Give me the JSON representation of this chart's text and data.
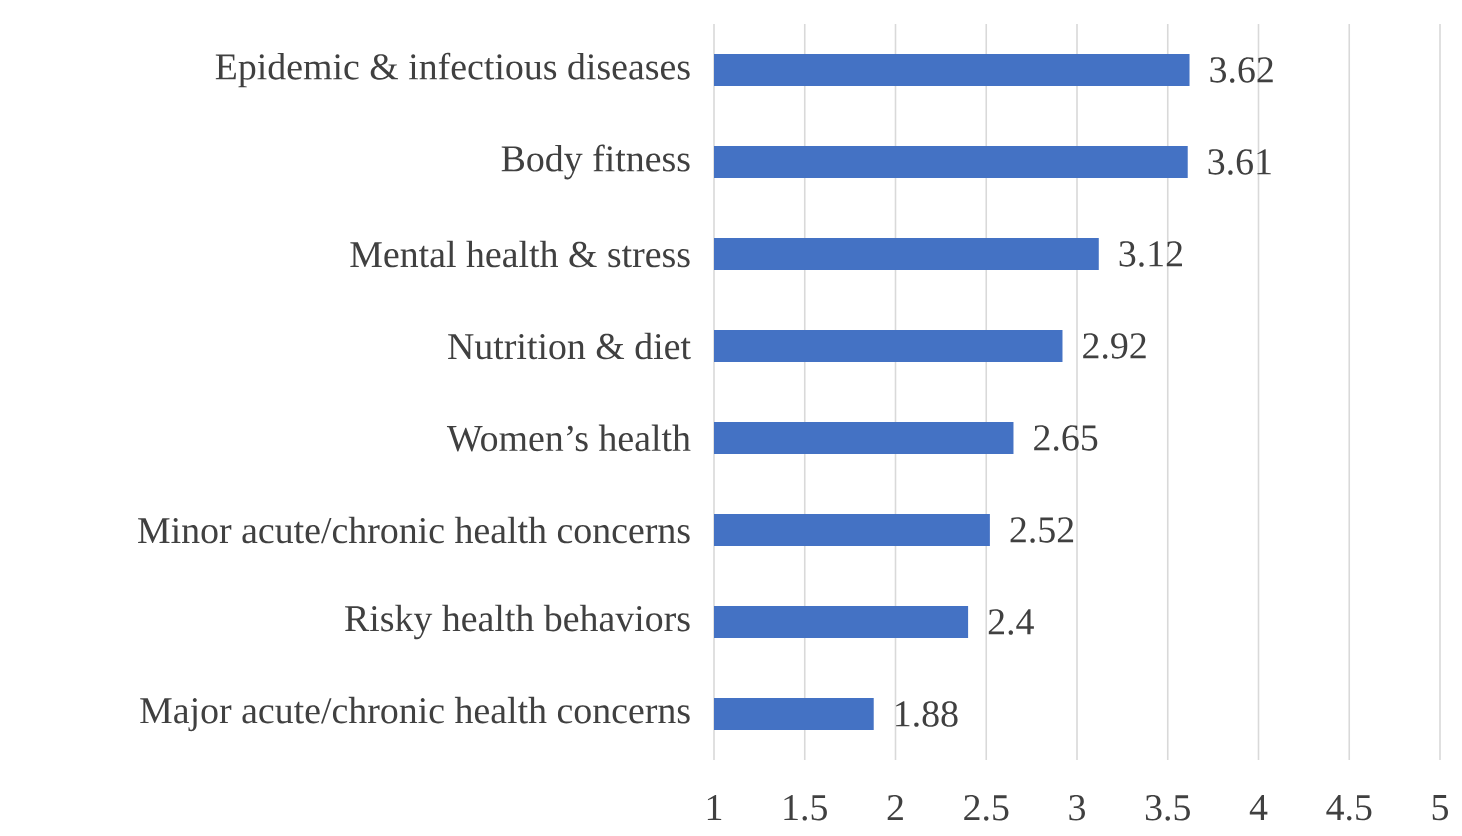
{
  "chart_data": {
    "type": "bar",
    "orientation": "horizontal",
    "categories": [
      "Epidemic & infectious diseases",
      "Body fitness",
      "Mental health & stress",
      "Nutrition & diet",
      "Women’s health",
      "Minor acute/chronic health concerns",
      "Risky health behaviors",
      "Major acute/chronic health concerns"
    ],
    "values": [
      3.62,
      3.61,
      3.12,
      2.92,
      2.65,
      2.52,
      2.4,
      1.88
    ],
    "value_labels": [
      "3.62",
      "3.61",
      "3.12",
      "2.92",
      "2.65",
      "2.52",
      "2.4",
      "1.88"
    ],
    "color": "#4472c4",
    "xlim": [
      1,
      5
    ],
    "xticks": [
      1,
      1.5,
      2,
      2.5,
      3,
      3.5,
      4,
      4.5,
      5
    ],
    "grid": "x"
  }
}
